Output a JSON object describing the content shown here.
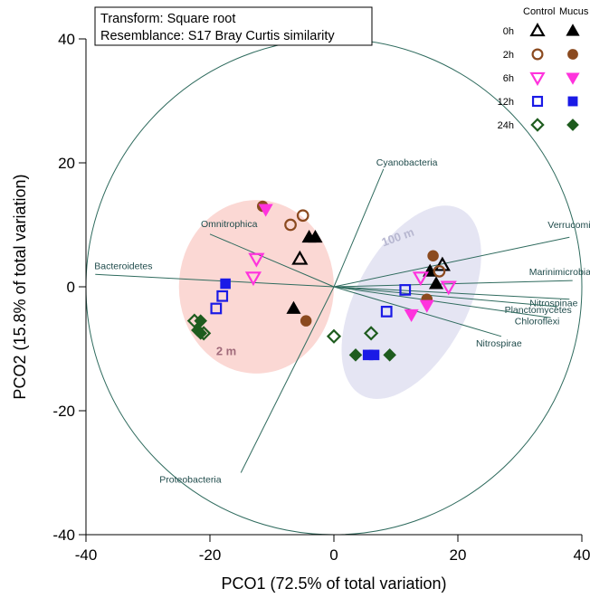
{
  "chart_data": {
    "type": "scatter",
    "xlabel": "PCO1 (72.5% of total variation)",
    "ylabel": "PCO2 (15.8% of total variation)",
    "xlim": [
      -40,
      40
    ],
    "ylim": [
      -40,
      40
    ],
    "xticks": [
      -40,
      -20,
      0,
      20,
      40
    ],
    "yticks": [
      -40,
      -20,
      0,
      20,
      40
    ],
    "info_lines": [
      "Transform: Square root",
      "Resemblance: S17 Bray Curtis similarity"
    ],
    "legend": {
      "headers": [
        "Control",
        "Mucus"
      ],
      "groups": [
        "0h",
        "2h",
        "6h",
        "12h",
        "24h"
      ]
    },
    "group_styles": {
      "0h": {
        "shape": "triangle-up",
        "color": "#000000"
      },
      "2h": {
        "shape": "circle",
        "color": "#8B4A1F"
      },
      "6h": {
        "shape": "triangle-down",
        "color": "#FF33DD"
      },
      "12h": {
        "shape": "square",
        "color": "#1A1AE6"
      },
      "24h": {
        "shape": "diamond",
        "color": "#1E5C1E"
      }
    },
    "circle": {
      "cx": 0,
      "cy": 0,
      "r": 40
    },
    "clusters": [
      {
        "label": "2 m",
        "cx": -12.5,
        "cy": 0,
        "rx": 12.5,
        "ry": 14,
        "color": "#F8B8B0"
      },
      {
        "label": "100 m",
        "cx": 12.5,
        "cy": -2.5,
        "rx": 9,
        "ry": 17,
        "rotation": 28,
        "color": "#D0D0EA"
      }
    ],
    "vectors": [
      {
        "name": "Cyanobacteria",
        "x": 8,
        "y": 19
      },
      {
        "name": "Verrucomicrobia",
        "x": 38,
        "y": 8
      },
      {
        "name": "Marinimicrobia",
        "x": 38.5,
        "y": 1
      },
      {
        "name": "Nitrospinae",
        "x": 38,
        "y": -2
      },
      {
        "name": "Planctomycetes",
        "x": 36,
        "y": -3.2
      },
      {
        "name": "Chloroflexi",
        "x": 35,
        "y": -5
      },
      {
        "name": "Nitrospirae",
        "x": 27,
        "y": -8
      },
      {
        "name": "Omnitrophica",
        "x": -20,
        "y": 8.5
      },
      {
        "name": "Bacteroidetes",
        "x": -38.5,
        "y": 2
      },
      {
        "name": "Proteobacteria",
        "x": -15,
        "y": -30
      }
    ],
    "points": [
      {
        "group": "0h",
        "treatment": "Control",
        "x": -5.5,
        "y": 4.5
      },
      {
        "group": "0h",
        "treatment": "Control",
        "x": 17.5,
        "y": 3.5
      },
      {
        "group": "0h",
        "treatment": "Mucus",
        "x": -4,
        "y": 8
      },
      {
        "group": "0h",
        "treatment": "Mucus",
        "x": -3,
        "y": 8
      },
      {
        "group": "0h",
        "treatment": "Mucus",
        "x": -6.5,
        "y": -3.5
      },
      {
        "group": "0h",
        "treatment": "Mucus",
        "x": 15.5,
        "y": 2.5
      },
      {
        "group": "0h",
        "treatment": "Mucus",
        "x": 16.5,
        "y": 0.5
      },
      {
        "group": "2h",
        "treatment": "Control",
        "x": -7,
        "y": 10
      },
      {
        "group": "2h",
        "treatment": "Control",
        "x": -5,
        "y": 11.5
      },
      {
        "group": "2h",
        "treatment": "Control",
        "x": 17,
        "y": 2.5
      },
      {
        "group": "2h",
        "treatment": "Mucus",
        "x": -11.5,
        "y": 13
      },
      {
        "group": "2h",
        "treatment": "Mucus",
        "x": -4.5,
        "y": -5.5
      },
      {
        "group": "2h",
        "treatment": "Mucus",
        "x": 16,
        "y": 5
      },
      {
        "group": "2h",
        "treatment": "Mucus",
        "x": 15,
        "y": -2
      },
      {
        "group": "6h",
        "treatment": "Control",
        "x": -12.5,
        "y": 4.5
      },
      {
        "group": "6h",
        "treatment": "Control",
        "x": -13,
        "y": 1.5
      },
      {
        "group": "6h",
        "treatment": "Control",
        "x": 14,
        "y": 1.5
      },
      {
        "group": "6h",
        "treatment": "Control",
        "x": 18.5,
        "y": 0
      },
      {
        "group": "6h",
        "treatment": "Mucus",
        "x": -11,
        "y": 12.5
      },
      {
        "group": "6h",
        "treatment": "Mucus",
        "x": 12.5,
        "y": -4.5
      },
      {
        "group": "6h",
        "treatment": "Mucus",
        "x": 15,
        "y": -3
      },
      {
        "group": "12h",
        "treatment": "Control",
        "x": -18,
        "y": -1.5
      },
      {
        "group": "12h",
        "treatment": "Control",
        "x": -19,
        "y": -3.5
      },
      {
        "group": "12h",
        "treatment": "Control",
        "x": 11.5,
        "y": -0.5
      },
      {
        "group": "12h",
        "treatment": "Control",
        "x": 8.5,
        "y": -4
      },
      {
        "group": "12h",
        "treatment": "Mucus",
        "x": -17.5,
        "y": 0.5
      },
      {
        "group": "12h",
        "treatment": "Mucus",
        "x": 5.5,
        "y": -11
      },
      {
        "group": "12h",
        "treatment": "Mucus",
        "x": 6.5,
        "y": -11
      },
      {
        "group": "24h",
        "treatment": "Control",
        "x": -22.5,
        "y": -5.5
      },
      {
        "group": "24h",
        "treatment": "Control",
        "x": -21,
        "y": -7.5
      },
      {
        "group": "24h",
        "treatment": "Control",
        "x": 0,
        "y": -8
      },
      {
        "group": "24h",
        "treatment": "Control",
        "x": 6,
        "y": -7.5
      },
      {
        "group": "24h",
        "treatment": "Mucus",
        "x": -21.5,
        "y": -5.5
      },
      {
        "group": "24h",
        "treatment": "Mucus",
        "x": -22,
        "y": -7
      },
      {
        "group": "24h",
        "treatment": "Mucus",
        "x": -21.5,
        "y": -7.5
      },
      {
        "group": "24h",
        "treatment": "Mucus",
        "x": 3.5,
        "y": -11
      },
      {
        "group": "24h",
        "treatment": "Mucus",
        "x": 9,
        "y": -11
      }
    ]
  }
}
